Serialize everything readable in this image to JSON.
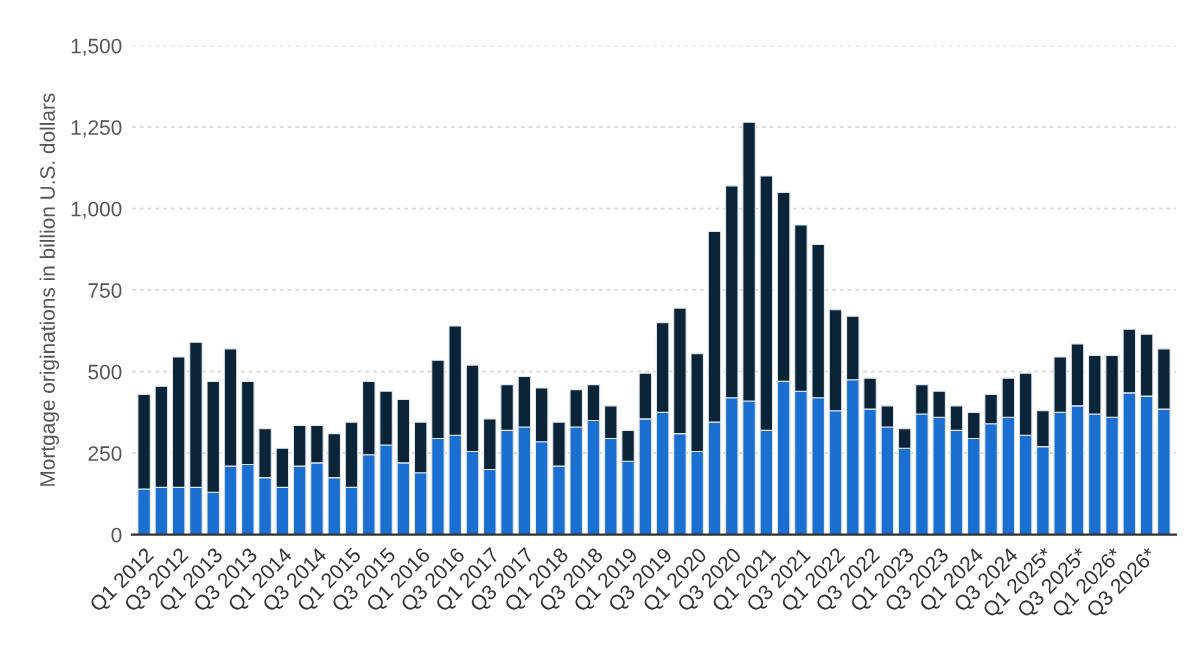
{
  "chart_data": {
    "type": "bar",
    "stacked": true,
    "ylabel": "Mortgage originations in billion U.S. dollars",
    "categories": [
      "Q1 2012",
      null,
      "Q3 2012",
      null,
      "Q1 2013",
      null,
      "Q3 2013",
      null,
      "Q1 2014",
      null,
      "Q3 2014",
      null,
      "Q1 2015",
      null,
      "Q3 2015",
      null,
      "Q1 2016",
      null,
      "Q3 2016",
      null,
      "Q1 2017",
      null,
      "Q3 2017",
      null,
      "Q1 2018",
      null,
      "Q3 2018",
      null,
      "Q1 2019",
      null,
      "Q3 2019",
      null,
      "Q1 2020",
      null,
      "Q3 2020",
      null,
      "Q1 2021",
      null,
      "Q3 2021",
      null,
      "Q1 2022",
      null,
      "Q3 2022",
      null,
      "Q1 2023",
      null,
      "Q3 2023",
      null,
      "Q1 2024",
      null,
      "Q3 2024",
      null,
      "Q1 2025*",
      null,
      "Q3 2025*",
      null,
      "Q1 2026*",
      null,
      "Q3 2026*",
      null
    ],
    "series": [
      {
        "color": "#1b6fd1",
        "values": [
          140,
          145,
          145,
          145,
          130,
          210,
          215,
          175,
          145,
          210,
          220,
          175,
          145,
          245,
          275,
          220,
          190,
          295,
          305,
          255,
          200,
          320,
          330,
          285,
          210,
          330,
          350,
          295,
          225,
          355,
          375,
          310,
          255,
          345,
          420,
          410,
          320,
          470,
          440,
          420,
          380,
          475,
          385,
          330,
          265,
          370,
          360,
          320,
          295,
          340,
          360,
          305,
          270,
          375,
          395,
          370,
          360,
          435,
          425,
          385
        ]
      },
      {
        "color": "#0c2438",
        "values": [
          290,
          310,
          400,
          445,
          340,
          360,
          255,
          150,
          120,
          125,
          115,
          135,
          200,
          225,
          165,
          195,
          155,
          240,
          335,
          265,
          155,
          140,
          155,
          165,
          135,
          115,
          110,
          100,
          95,
          140,
          275,
          385,
          300,
          585,
          650,
          855,
          780,
          580,
          510,
          470,
          310,
          195,
          95,
          65,
          60,
          90,
          80,
          75,
          80,
          90,
          120,
          190,
          110,
          170,
          190,
          180,
          190,
          195,
          190,
          185
        ]
      }
    ],
    "ylim": [
      0,
      1500
    ],
    "yticks": [
      0,
      {
        "value": 250,
        "label": "250"
      },
      {
        "value": 500,
        "label": "500"
      },
      {
        "value": 750,
        "label": "750"
      },
      {
        "value": 1000,
        "label": "1,000"
      },
      {
        "value": 1250,
        "label": "1,250"
      },
      {
        "value": 1500,
        "label": "1,500"
      }
    ],
    "grid": "y"
  }
}
